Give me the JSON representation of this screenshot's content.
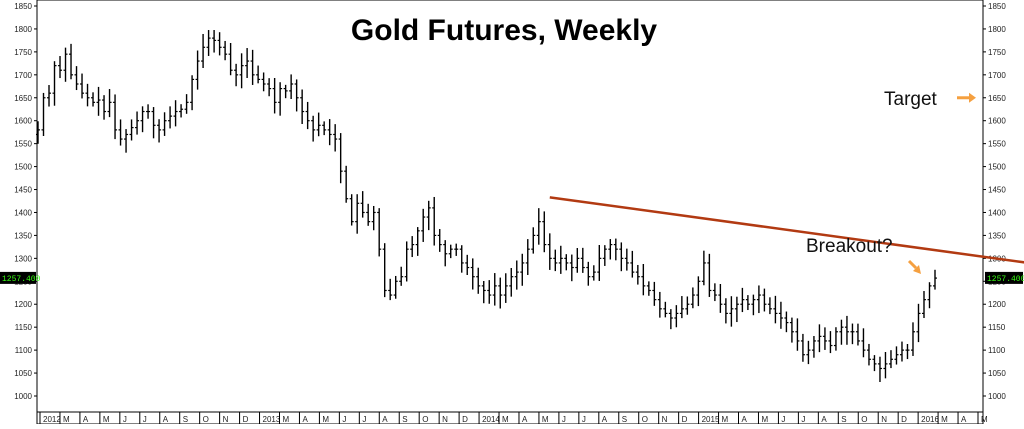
{
  "chart_data": {
    "type": "ohlc",
    "title": "Gold Futures, Weekly",
    "ylim": [
      970,
      1870
    ],
    "y_ticks": [
      1000,
      1050,
      1100,
      1150,
      1200,
      1250,
      1300,
      1350,
      1400,
      1450,
      1500,
      1550,
      1600,
      1650,
      1700,
      1750,
      1800,
      1850
    ],
    "grid": false,
    "last_price_label": "1257.400",
    "last_price": 1257.4,
    "x_labels": [
      "2012",
      "M",
      "A",
      "M",
      "J",
      "J",
      "A",
      "S",
      "O",
      "N",
      "D",
      "2013",
      "M",
      "A",
      "M",
      "J",
      "J",
      "A",
      "S",
      "O",
      "N",
      "D",
      "2014",
      "M",
      "A",
      "M",
      "J",
      "J",
      "A",
      "S",
      "O",
      "N",
      "D",
      "2015",
      "M",
      "A",
      "M",
      "J",
      "J",
      "A",
      "S",
      "O",
      "N",
      "D",
      "2016",
      "M",
      "A",
      "M"
    ],
    "closes": [
      1580,
      1650,
      1660,
      1720,
      1710,
      1745,
      1700,
      1680,
      1660,
      1650,
      1640,
      1645,
      1620,
      1640,
      1580,
      1560,
      1570,
      1585,
      1600,
      1620,
      1620,
      1590,
      1580,
      1600,
      1610,
      1620,
      1625,
      1640,
      1690,
      1730,
      1760,
      1780,
      1775,
      1760,
      1745,
      1710,
      1700,
      1720,
      1730,
      1700,
      1690,
      1680,
      1670,
      1640,
      1670,
      1665,
      1680,
      1650,
      1620,
      1600,
      1580,
      1590,
      1580,
      1570,
      1560,
      1490,
      1430,
      1380,
      1420,
      1400,
      1380,
      1400,
      1320,
      1230,
      1220,
      1250,
      1260,
      1320,
      1330,
      1360,
      1390,
      1410,
      1350,
      1330,
      1310,
      1320,
      1320,
      1290,
      1280,
      1260,
      1240,
      1230,
      1220,
      1240,
      1220,
      1240,
      1260,
      1270,
      1290,
      1320,
      1350,
      1380,
      1330,
      1300,
      1290,
      1300,
      1290,
      1280,
      1300,
      1280,
      1260,
      1270,
      1300,
      1320,
      1330,
      1320,
      1300,
      1290,
      1270,
      1260,
      1240,
      1230,
      1210,
      1190,
      1180,
      1170,
      1180,
      1190,
      1200,
      1220,
      1250,
      1290,
      1230,
      1220,
      1200,
      1180,
      1190,
      1200,
      1210,
      1200,
      1210,
      1220,
      1200,
      1190,
      1180,
      1170,
      1160,
      1140,
      1120,
      1090,
      1100,
      1120,
      1130,
      1120,
      1110,
      1140,
      1150,
      1140,
      1140,
      1120,
      1100,
      1080,
      1070,
      1060,
      1070,
      1080,
      1090,
      1100,
      1100,
      1140,
      1180,
      1210,
      1240,
      1257
    ],
    "annotations": [
      {
        "text": "Target",
        "price": 1650
      },
      {
        "text": "Breakout?",
        "price": 1280
      }
    ],
    "trendline": {
      "from": {
        "x_index": 93,
        "price": 1433
      },
      "to": {
        "x_index": 239,
        "price": 1193
      }
    }
  }
}
